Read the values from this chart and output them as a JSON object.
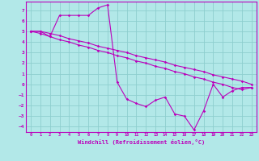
{
  "title": "",
  "xlabel": "Windchill (Refroidissement éolien,°C)",
  "bg_color": "#b2e8e8",
  "grid_color": "#8ecece",
  "line_color": "#bb00bb",
  "xlim": [
    -0.5,
    23.5
  ],
  "ylim": [
    -4.5,
    7.8
  ],
  "xticks": [
    0,
    1,
    2,
    3,
    4,
    5,
    6,
    7,
    8,
    9,
    10,
    11,
    12,
    13,
    14,
    15,
    16,
    17,
    18,
    19,
    20,
    21,
    22,
    23
  ],
  "yticks": [
    -4,
    -3,
    -2,
    -1,
    0,
    1,
    2,
    3,
    4,
    5,
    6,
    7
  ],
  "line1_x": [
    0,
    1,
    2,
    3,
    4,
    5,
    6,
    7,
    8,
    9,
    10,
    11,
    12,
    13,
    14,
    15,
    16,
    17,
    18,
    19,
    20,
    21,
    22,
    23
  ],
  "line1_y": [
    5.0,
    5.0,
    4.8,
    4.6,
    4.3,
    4.1,
    3.9,
    3.6,
    3.4,
    3.2,
    3.0,
    2.7,
    2.5,
    2.3,
    2.1,
    1.8,
    1.6,
    1.4,
    1.2,
    0.9,
    0.7,
    0.5,
    0.3,
    0.0
  ],
  "line2_x": [
    0,
    1,
    2,
    3,
    4,
    5,
    6,
    7,
    8,
    9,
    10,
    11,
    12,
    13,
    14,
    15,
    16,
    17,
    18,
    19,
    20,
    21,
    22,
    23
  ],
  "line2_y": [
    5.0,
    5.0,
    4.5,
    6.5,
    6.5,
    6.5,
    6.5,
    7.2,
    7.5,
    0.2,
    -1.4,
    -1.8,
    -2.1,
    -1.5,
    -1.2,
    -2.8,
    -3.0,
    -4.3,
    -2.5,
    0.0,
    -1.2,
    -0.6,
    -0.3,
    -0.3
  ],
  "line3_x": [
    0,
    1,
    2,
    3,
    4,
    5,
    6,
    7,
    8,
    9,
    10,
    11,
    12,
    13,
    14,
    15,
    16,
    17,
    18,
    19,
    20,
    21,
    22,
    23
  ],
  "line3_y": [
    5.0,
    4.8,
    4.5,
    4.2,
    4.0,
    3.7,
    3.5,
    3.2,
    3.0,
    2.7,
    2.5,
    2.2,
    2.0,
    1.7,
    1.5,
    1.2,
    1.0,
    0.7,
    0.5,
    0.2,
    0.0,
    -0.3,
    -0.5,
    -0.3
  ]
}
